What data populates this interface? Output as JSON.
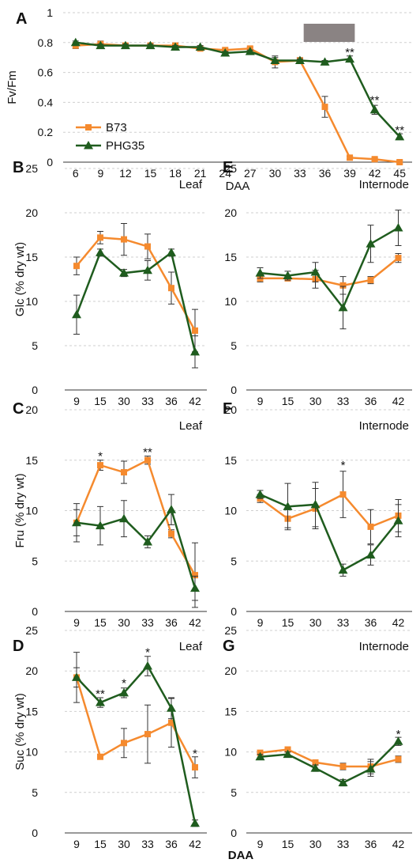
{
  "colors": {
    "b73": "#f58a2e",
    "phg35": "#1f5c1e",
    "shade": "#8a8383",
    "grid": "#cfcfcf"
  },
  "legend": [
    "B73",
    "PHG35"
  ],
  "bottom_xlabel": "DAA",
  "chart_data": [
    {
      "panel": "A",
      "type": "line",
      "x": [
        6,
        9,
        12,
        15,
        18,
        21,
        24,
        27,
        30,
        33,
        36,
        39,
        42,
        45
      ],
      "xtick_labels": [
        "6",
        "9",
        "12",
        "15",
        "18",
        "21",
        "24",
        "27",
        "30",
        "33",
        "36",
        "39",
        "42",
        "45"
      ],
      "ylabel": "Fv/Fm",
      "xlabel": "DAA",
      "ylim": [
        0,
        1
      ],
      "yticks": [
        0,
        0.2,
        0.4,
        0.6,
        0.8,
        1
      ],
      "ytick_labels": [
        "0",
        "0.2",
        "0.4",
        "0.6",
        "0.8",
        "1"
      ],
      "shaded_x_range": [
        33,
        39
      ],
      "series": [
        {
          "name": "B73",
          "values": [
            0.78,
            0.79,
            0.78,
            0.78,
            0.78,
            0.76,
            0.75,
            0.76,
            0.67,
            0.68,
            0.37,
            0.03,
            0.02,
            0.0
          ],
          "errors": [
            0.02,
            0.02,
            0.01,
            0.01,
            0.01,
            0.01,
            0.01,
            0.01,
            0.04,
            0.02,
            0.07,
            0.01,
            0.01,
            0.01
          ]
        },
        {
          "name": "PHG35",
          "values": [
            0.8,
            0.78,
            0.78,
            0.78,
            0.77,
            0.77,
            0.73,
            0.74,
            0.68,
            0.68,
            0.67,
            0.69,
            0.35,
            0.17
          ],
          "errors": [
            0.01,
            0.01,
            0.01,
            0.01,
            0.01,
            0.01,
            0.01,
            0.01,
            0.02,
            0.01,
            0.01,
            0.02,
            0.03,
            0.02
          ]
        }
      ],
      "annotations": [
        {
          "x": 39,
          "text": "**",
          "y": 0.74
        },
        {
          "x": 42,
          "text": "**",
          "y": 0.42
        },
        {
          "x": 45,
          "text": "**",
          "y": 0.22
        }
      ]
    },
    {
      "panel": "B",
      "type": "line",
      "note": "Leaf",
      "categories": [
        "9",
        "15",
        "30",
        "33",
        "36",
        "42"
      ],
      "ylabel": "Glc (% dry wt)",
      "ylim": [
        0,
        25
      ],
      "yticks": [
        0,
        5,
        10,
        15,
        20,
        25
      ],
      "series": [
        {
          "name": "B73",
          "values": [
            14.0,
            17.2,
            17.0,
            16.2,
            11.5,
            6.7
          ],
          "errors": [
            1.0,
            0.7,
            1.8,
            1.4,
            1.8,
            2.4
          ]
        },
        {
          "name": "PHG35",
          "values": [
            8.5,
            15.5,
            13.2,
            13.5,
            15.5,
            4.3
          ],
          "errors": [
            2.2,
            0.4,
            0.4,
            1.1,
            0.4,
            1.8
          ]
        }
      ],
      "annotations": []
    },
    {
      "panel": "E",
      "type": "line",
      "note": "Internode",
      "categories": [
        "9",
        "15",
        "30",
        "33",
        "36",
        "42"
      ],
      "ylabel": "",
      "ylim": [
        0,
        25
      ],
      "yticks": [
        0,
        5,
        10,
        15,
        20,
        25
      ],
      "series": [
        {
          "name": "B73",
          "values": [
            12.6,
            12.6,
            12.5,
            11.8,
            12.4,
            14.9
          ],
          "errors": [
            0.4,
            0.3,
            1.0,
            1.0,
            0.4,
            0.5
          ]
        },
        {
          "name": "PHG35",
          "values": [
            13.2,
            12.9,
            13.3,
            9.3,
            16.5,
            18.3
          ],
          "errors": [
            0.6,
            0.5,
            1.1,
            2.4,
            2.1,
            2.0
          ]
        }
      ],
      "annotations": []
    },
    {
      "panel": "C",
      "type": "line",
      "note": "Leaf",
      "categories": [
        "9",
        "15",
        "30",
        "33",
        "36",
        "42"
      ],
      "ylabel": "Fru (% dry wt)",
      "ylim": [
        0,
        20
      ],
      "yticks": [
        0,
        5,
        10,
        15,
        20
      ],
      "series": [
        {
          "name": "B73",
          "values": [
            8.8,
            14.5,
            13.8,
            15.0,
            7.7,
            3.6
          ],
          "errors": [
            1.9,
            0.5,
            1.1,
            0.4,
            0.4,
            3.2
          ]
        },
        {
          "name": "PHG35",
          "values": [
            8.8,
            8.5,
            9.2,
            6.9,
            10.1,
            2.3
          ],
          "errors": [
            1.3,
            1.9,
            1.8,
            0.6,
            1.5,
            1.2
          ]
        }
      ],
      "annotations": [
        {
          "x": "15",
          "text": "*",
          "y": 15.5
        },
        {
          "x": "33",
          "text": "**",
          "y": 15.9
        }
      ]
    },
    {
      "panel": "F",
      "type": "line",
      "note": "Internode",
      "categories": [
        "9",
        "15",
        "30",
        "33",
        "36",
        "42"
      ],
      "ylabel": "",
      "ylim": [
        0,
        20
      ],
      "yticks": [
        0,
        5,
        10,
        15,
        20
      ],
      "series": [
        {
          "name": "B73",
          "values": [
            11.2,
            9.2,
            10.2,
            11.6,
            8.4,
            9.5
          ],
          "errors": [
            0.4,
            0.9,
            2.0,
            2.3,
            1.7,
            1.6
          ]
        },
        {
          "name": "PHG35",
          "values": [
            11.6,
            10.4,
            10.6,
            4.1,
            5.6,
            9.0
          ],
          "errors": [
            0.4,
            2.3,
            2.2,
            0.6,
            1.0,
            1.6
          ]
        }
      ],
      "annotations": [
        {
          "x": "33",
          "text": "*",
          "y": 14.6
        }
      ]
    },
    {
      "panel": "D",
      "type": "line",
      "note": "Leaf",
      "categories": [
        "9",
        "15",
        "30",
        "33",
        "36",
        "42"
      ],
      "ylabel": "Suc (% dry wt)",
      "ylim": [
        0,
        25
      ],
      "yticks": [
        0,
        5,
        10,
        15,
        20,
        25
      ],
      "series": [
        {
          "name": "B73",
          "values": [
            19.2,
            9.4,
            11.1,
            12.2,
            13.6,
            8.1
          ],
          "errors": [
            1.2,
            0.3,
            1.8,
            3.6,
            3.0,
            1.3
          ]
        },
        {
          "name": "PHG35",
          "values": [
            19.2,
            16.1,
            17.3,
            20.6,
            15.4,
            1.2
          ],
          "errors": [
            3.1,
            0.6,
            0.6,
            1.2,
            1.3,
            0.4
          ]
        }
      ],
      "annotations": [
        {
          "x": "15",
          "text": "**",
          "y": 17.3
        },
        {
          "x": "30",
          "text": "*",
          "y": 18.6
        },
        {
          "x": "33",
          "text": "*",
          "y": 22.4
        },
        {
          "x": "42",
          "text": "*",
          "y": 9.9
        }
      ]
    },
    {
      "panel": "G",
      "type": "line",
      "note": "Internode",
      "categories": [
        "9",
        "15",
        "30",
        "33",
        "36",
        "42"
      ],
      "ylabel": "",
      "ylim": [
        0,
        25
      ],
      "yticks": [
        0,
        5,
        10,
        15,
        20,
        25
      ],
      "series": [
        {
          "name": "B73",
          "values": [
            9.9,
            10.3,
            8.7,
            8.2,
            8.2,
            9.1
          ],
          "errors": [
            0.3,
            0.3,
            0.3,
            0.4,
            0.9,
            0.4
          ]
        },
        {
          "name": "PHG35",
          "values": [
            9.4,
            9.7,
            8.0,
            6.2,
            7.9,
            11.3
          ],
          "errors": [
            0.3,
            0.3,
            0.4,
            0.4,
            0.9,
            0.5
          ]
        }
      ],
      "annotations": [
        {
          "x": "42",
          "text": "*",
          "y": 12.3
        }
      ]
    }
  ]
}
